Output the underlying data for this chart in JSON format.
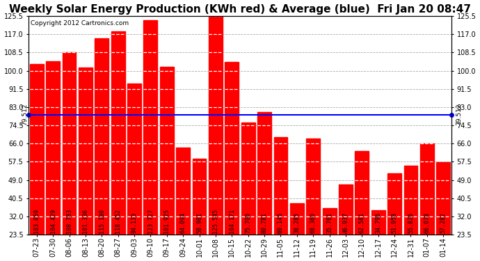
{
  "title": "Weekly Solar Energy Production (KWh red) & Average (blue)  Fri Jan 20 08:47",
  "copyright": "Copyright 2012 Cartronics.com",
  "categories": [
    "07-23",
    "07-30",
    "08-06",
    "08-13",
    "08-20",
    "08-27",
    "09-03",
    "09-10",
    "09-17",
    "09-24",
    "10-01",
    "10-08",
    "10-15",
    "10-22",
    "10-29",
    "11-05",
    "11-12",
    "11-19",
    "11-26",
    "12-03",
    "12-10",
    "12-17",
    "12-24",
    "12-31",
    "01-07",
    "01-14"
  ],
  "values": [
    103.059,
    104.429,
    108.783,
    101.336,
    115.18,
    118.452,
    94.133,
    123.727,
    101.925,
    64.094,
    58.981,
    125.545,
    104.171,
    75.7,
    80.781,
    69.145,
    38.285,
    68.36,
    35.761,
    46.937,
    62.581,
    34.796,
    51.958,
    55.826,
    66.078,
    57.282
  ],
  "average": 79.512,
  "bar_color": "#ff0000",
  "avg_line_color": "#0000ff",
  "background_color": "#ffffff",
  "plot_bg_color": "#ffffff",
  "grid_color": "#aaaaaa",
  "ylim_min": 23.5,
  "ylim_max": 125.5,
  "yticks": [
    23.5,
    32.0,
    40.5,
    49.0,
    57.5,
    66.0,
    74.5,
    83.0,
    91.5,
    100.0,
    108.5,
    117.0,
    125.5
  ],
  "title_fontsize": 11,
  "copyright_fontsize": 6.5,
  "tick_fontsize": 7,
  "bar_value_fontsize": 6.0
}
